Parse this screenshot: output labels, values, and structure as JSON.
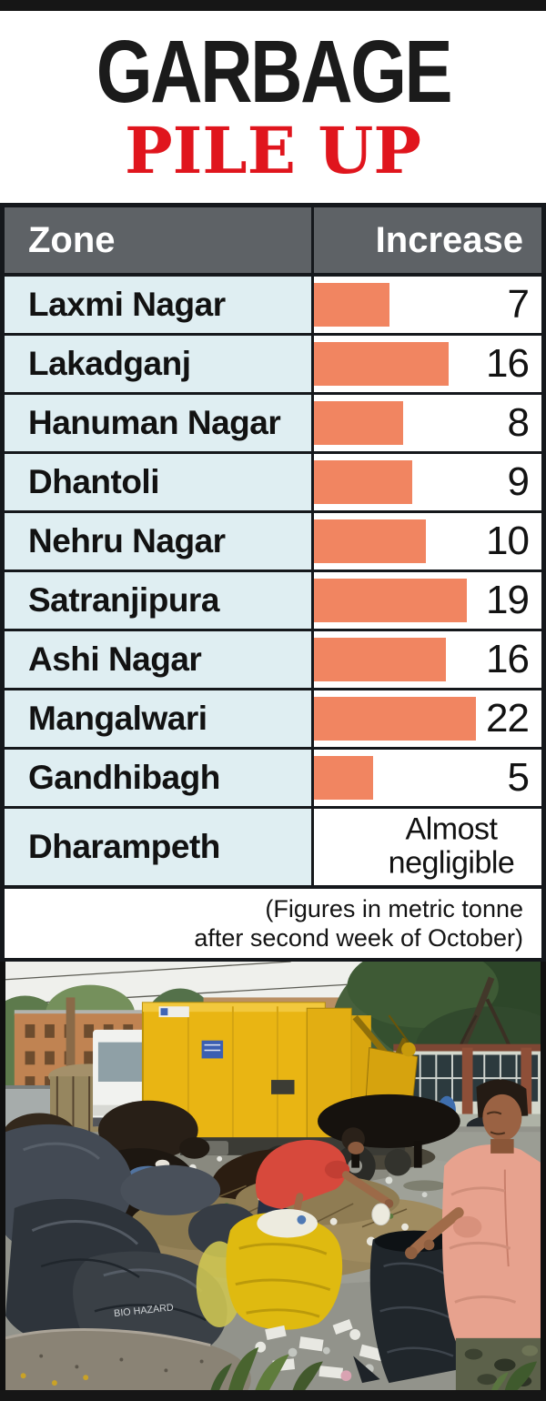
{
  "title": {
    "line1": "GARBAGE",
    "line2": "PILE UP"
  },
  "colors": {
    "accent_red": "#e0151d",
    "header_bg": "#5e6266",
    "zone_cell_bg": "#dfeef2",
    "bar_orange": "#f18561",
    "border_black": "#15181c",
    "text_black": "#121212"
  },
  "table": {
    "headers": [
      "Zone",
      "Increase"
    ],
    "rows": [
      {
        "zone": "Laxmi Nagar",
        "value": "7",
        "bar_pct": 33
      },
      {
        "zone": "Lakadganj",
        "value": "16",
        "bar_pct": 59
      },
      {
        "zone": "Hanuman Nagar",
        "value": "8",
        "bar_pct": 39
      },
      {
        "zone": "Dhantoli",
        "value": "9",
        "bar_pct": 43
      },
      {
        "zone": "Nehru Nagar",
        "value": "10",
        "bar_pct": 49
      },
      {
        "zone": "Satranjipura",
        "value": "19",
        "bar_pct": 67
      },
      {
        "zone": "Ashi Nagar",
        "value": "16",
        "bar_pct": 58
      },
      {
        "zone": "Mangalwari",
        "value": "22",
        "bar_pct": 71
      },
      {
        "zone": "Gandhibagh",
        "value": "5",
        "bar_pct": 26
      },
      {
        "zone": "Dharampeth",
        "value": "Almost negligible",
        "bar_pct": 0,
        "text_value": true
      }
    ]
  },
  "footnote": {
    "line1": "(Figures in metric tonne",
    "line2": "after second week of October)"
  },
  "chart_data": {
    "type": "bar",
    "orientation": "horizontal",
    "title": "GARBAGE PILE UP",
    "xlabel": "Zone",
    "ylabel": "Increase",
    "note": "(Figures in metric tonne after second week of October)",
    "categories": [
      "Laxmi Nagar",
      "Lakadganj",
      "Hanuman Nagar",
      "Dhantoli",
      "Nehru Nagar",
      "Satranjipura",
      "Ashi Nagar",
      "Mangalwari",
      "Gandhibagh",
      "Dharampeth"
    ],
    "values": [
      7,
      16,
      8,
      9,
      10,
      19,
      16,
      22,
      5,
      null
    ],
    "value_labels": [
      "7",
      "16",
      "8",
      "9",
      "10",
      "19",
      "16",
      "22",
      "5",
      "Almost negligible"
    ],
    "bar_color": "#f18561",
    "grid": false,
    "legend": false
  },
  "photo": {
    "alt": "Garbage pile-up spot: yellow compactor truck, cows and two men sorting trash bags",
    "bag_text": "BIO HAZARD"
  }
}
